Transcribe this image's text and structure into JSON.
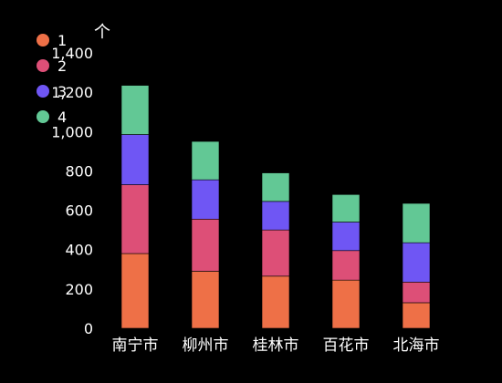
{
  "chart_data": {
    "type": "bar",
    "stacked": true,
    "categories": [
      "南宁市",
      "柳州市",
      "桂林市",
      "百花市",
      "北海市"
    ],
    "series": [
      {
        "name": "1",
        "color": "#ee7047",
        "values": [
          380,
          290,
          265,
          245,
          130
        ]
      },
      {
        "name": "2",
        "color": "#dd4f77",
        "values": [
          350,
          265,
          235,
          150,
          105
        ]
      },
      {
        "name": "3",
        "color": "#6f56f4",
        "values": [
          255,
          200,
          145,
          145,
          200
        ]
      },
      {
        "name": "4",
        "color": "#62c895",
        "values": [
          250,
          195,
          145,
          140,
          200
        ]
      }
    ],
    "ylabel": "个",
    "ylim": [
      0,
      1400
    ],
    "yticks": [
      0,
      200,
      400,
      600,
      800,
      1000,
      1200,
      1400
    ],
    "ytick_labels": [
      "0",
      "200",
      "400",
      "600",
      "800",
      "1,000",
      "1,200",
      "1,400"
    ],
    "grid": false,
    "legend_position": "top-left"
  }
}
